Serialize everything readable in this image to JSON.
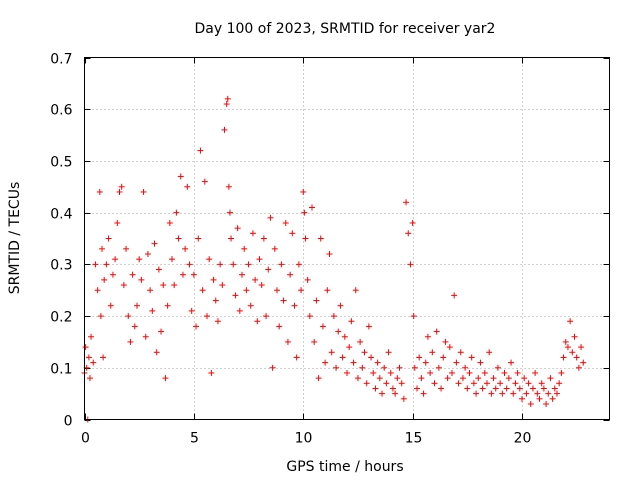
{
  "chart_data": {
    "type": "scatter",
    "title": "Day 100 of 2023, SRMTID for receiver yar2",
    "xlabel": "GPS time / hours",
    "ylabel": "SRMTID / TECUs",
    "xlim": [
      0,
      24
    ],
    "ylim": [
      0,
      0.7
    ],
    "xticks": [
      0,
      5,
      10,
      15,
      20
    ],
    "xtick_labels": [
      "0",
      "5",
      "10",
      "15",
      "20"
    ],
    "yticks": [
      0,
      0.1,
      0.2,
      0.3,
      0.4,
      0.5,
      0.6,
      0.7
    ],
    "ytick_labels": [
      "0",
      "0.1",
      "0.2",
      "0.3",
      "0.4",
      "0.5",
      "0.6",
      "0.7"
    ],
    "grid": true,
    "marker": "+",
    "color": "#ff0000",
    "series": [
      {
        "name": "SRMTID",
        "x": [
          0.0,
          0.05,
          0.1,
          0.15,
          0.2,
          0.25,
          0.3,
          0.4,
          0.5,
          0.6,
          0.7,
          0.75,
          0.8,
          0.85,
          0.9,
          1.0,
          1.1,
          1.2,
          1.3,
          1.4,
          1.5,
          1.6,
          1.7,
          1.8,
          1.9,
          2.0,
          2.1,
          2.2,
          2.3,
          2.4,
          2.5,
          2.6,
          2.7,
          2.8,
          2.9,
          3.0,
          3.1,
          3.2,
          3.3,
          3.4,
          3.5,
          3.6,
          3.7,
          3.8,
          3.9,
          4.0,
          4.1,
          4.2,
          4.3,
          4.4,
          4.5,
          4.6,
          4.7,
          4.8,
          4.9,
          5.0,
          5.1,
          5.2,
          5.3,
          5.4,
          5.5,
          5.6,
          5.7,
          5.8,
          5.9,
          6.0,
          6.1,
          6.2,
          6.3,
          6.4,
          6.5,
          6.55,
          6.6,
          6.65,
          6.7,
          6.8,
          6.9,
          7.0,
          7.1,
          7.2,
          7.3,
          7.4,
          7.5,
          7.6,
          7.7,
          7.8,
          7.9,
          8.0,
          8.1,
          8.2,
          8.3,
          8.4,
          8.5,
          8.6,
          8.7,
          8.8,
          8.9,
          9.0,
          9.1,
          9.2,
          9.3,
          9.4,
          9.5,
          9.6,
          9.7,
          9.8,
          9.9,
          10.0,
          10.05,
          10.1,
          10.2,
          10.3,
          10.4,
          10.5,
          10.6,
          10.7,
          10.8,
          10.9,
          11.0,
          11.1,
          11.2,
          11.3,
          11.4,
          11.5,
          11.6,
          11.7,
          11.8,
          11.9,
          12.0,
          12.1,
          12.2,
          12.3,
          12.4,
          12.5,
          12.6,
          12.7,
          12.8,
          12.9,
          13.0,
          13.1,
          13.2,
          13.3,
          13.4,
          13.5,
          13.6,
          13.7,
          13.8,
          13.9,
          14.0,
          14.1,
          14.2,
          14.3,
          14.4,
          14.5,
          14.6,
          14.7,
          14.8,
          14.9,
          15.0,
          15.05,
          15.1,
          15.2,
          15.3,
          15.4,
          15.5,
          15.6,
          15.7,
          15.8,
          15.9,
          16.0,
          16.1,
          16.2,
          16.3,
          16.4,
          16.5,
          16.6,
          16.7,
          16.8,
          16.9,
          17.0,
          17.1,
          17.2,
          17.3,
          17.4,
          17.5,
          17.6,
          17.7,
          17.8,
          17.9,
          18.0,
          18.1,
          18.2,
          18.3,
          18.4,
          18.5,
          18.6,
          18.7,
          18.8,
          18.9,
          19.0,
          19.1,
          19.2,
          19.3,
          19.4,
          19.5,
          19.6,
          19.7,
          19.8,
          19.9,
          20.0,
          20.1,
          20.2,
          20.3,
          20.4,
          20.5,
          20.6,
          20.7,
          20.8,
          20.9,
          21.0,
          21.1,
          21.2,
          21.3,
          21.4,
          21.5,
          21.6,
          21.7,
          21.8,
          21.9,
          22.0,
          22.1,
          22.2,
          22.3,
          22.4,
          22.5,
          22.6,
          22.7,
          22.8
        ],
        "y": [
          0.09,
          0.14,
          0.1,
          0.0,
          0.12,
          0.08,
          0.16,
          0.11,
          0.3,
          0.25,
          0.44,
          0.2,
          0.33,
          0.12,
          0.27,
          0.3,
          0.35,
          0.22,
          0.28,
          0.31,
          0.38,
          0.44,
          0.45,
          0.26,
          0.33,
          0.2,
          0.15,
          0.28,
          0.18,
          0.22,
          0.31,
          0.27,
          0.44,
          0.16,
          0.32,
          0.25,
          0.21,
          0.34,
          0.13,
          0.29,
          0.17,
          0.26,
          0.08,
          0.22,
          0.38,
          0.31,
          0.26,
          0.4,
          0.35,
          0.47,
          0.28,
          0.33,
          0.45,
          0.3,
          0.21,
          0.28,
          0.18,
          0.35,
          0.52,
          0.25,
          0.46,
          0.2,
          0.31,
          0.09,
          0.27,
          0.23,
          0.19,
          0.3,
          0.26,
          0.56,
          0.61,
          0.62,
          0.45,
          0.4,
          0.35,
          0.3,
          0.24,
          0.37,
          0.21,
          0.28,
          0.33,
          0.25,
          0.3,
          0.22,
          0.36,
          0.27,
          0.19,
          0.31,
          0.26,
          0.35,
          0.2,
          0.29,
          0.39,
          0.1,
          0.33,
          0.25,
          0.18,
          0.3,
          0.23,
          0.38,
          0.15,
          0.28,
          0.36,
          0.22,
          0.12,
          0.3,
          0.25,
          0.44,
          0.4,
          0.35,
          0.27,
          0.2,
          0.41,
          0.15,
          0.23,
          0.08,
          0.35,
          0.18,
          0.11,
          0.25,
          0.32,
          0.13,
          0.2,
          0.1,
          0.17,
          0.22,
          0.12,
          0.16,
          0.09,
          0.14,
          0.19,
          0.11,
          0.25,
          0.08,
          0.15,
          0.1,
          0.13,
          0.07,
          0.18,
          0.12,
          0.09,
          0.06,
          0.11,
          0.08,
          0.05,
          0.1,
          0.07,
          0.13,
          0.09,
          0.06,
          0.05,
          0.08,
          0.1,
          0.07,
          0.04,
          0.42,
          0.36,
          0.3,
          0.38,
          0.2,
          0.1,
          0.06,
          0.12,
          0.08,
          0.05,
          0.11,
          0.16,
          0.09,
          0.13,
          0.07,
          0.17,
          0.1,
          0.06,
          0.12,
          0.15,
          0.08,
          0.14,
          0.09,
          0.24,
          0.11,
          0.07,
          0.13,
          0.08,
          0.1,
          0.06,
          0.09,
          0.12,
          0.07,
          0.05,
          0.08,
          0.11,
          0.06,
          0.09,
          0.07,
          0.13,
          0.05,
          0.08,
          0.06,
          0.1,
          0.07,
          0.05,
          0.09,
          0.06,
          0.08,
          0.11,
          0.05,
          0.07,
          0.09,
          0.06,
          0.04,
          0.08,
          0.05,
          0.07,
          0.03,
          0.06,
          0.09,
          0.05,
          0.04,
          0.07,
          0.06,
          0.03,
          0.05,
          0.08,
          0.04,
          0.06,
          0.05,
          0.07,
          0.09,
          0.12,
          0.15,
          0.14,
          0.19,
          0.13,
          0.16,
          0.12,
          0.1,
          0.14,
          0.11
        ]
      }
    ]
  }
}
